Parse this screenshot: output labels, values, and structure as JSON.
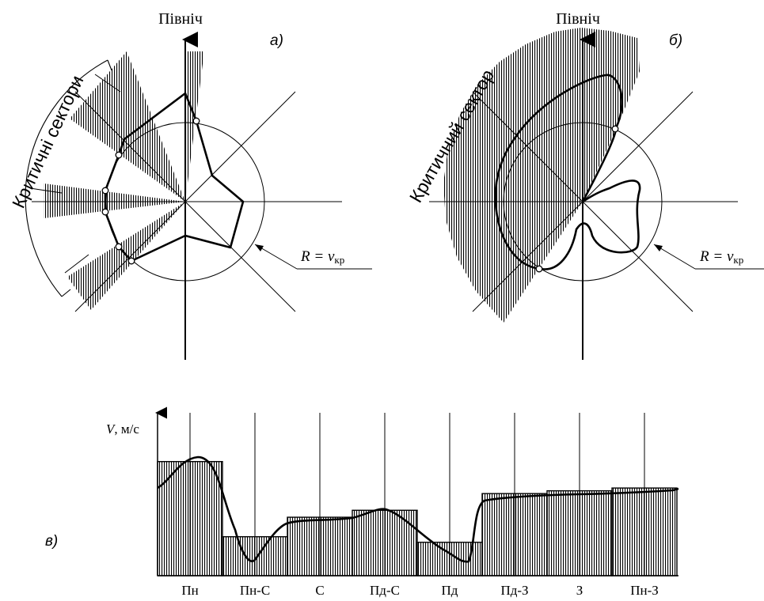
{
  "panel_a": {
    "north_label": "Північ",
    "panel_label": "а)",
    "sector_caption": "Критичні сектори",
    "radius_label_lhs": "R = ",
    "radius_label_v": "v",
    "radius_label_sub": "кр"
  },
  "panel_b": {
    "north_label": "Північ",
    "panel_label": "б)",
    "sector_caption": "Критичний сектор",
    "radius_label_lhs": "R = ",
    "radius_label_v": "v",
    "radius_label_sub": "кр"
  },
  "panel_c": {
    "panel_label": "в)",
    "y_axis_label_v": "V",
    "y_axis_label_unit": ", м/с",
    "directions": [
      "Пн",
      "Пн-С",
      "С",
      "Пд-С",
      "Пд",
      "Пд-З",
      "З",
      "Пн-З"
    ],
    "bar_levels": [
      0.82,
      0.28,
      0.42,
      0.47,
      0.24,
      0.59,
      0.61,
      0.63
    ]
  },
  "colors": {
    "ink": "#000000",
    "paper": "#ffffff"
  }
}
